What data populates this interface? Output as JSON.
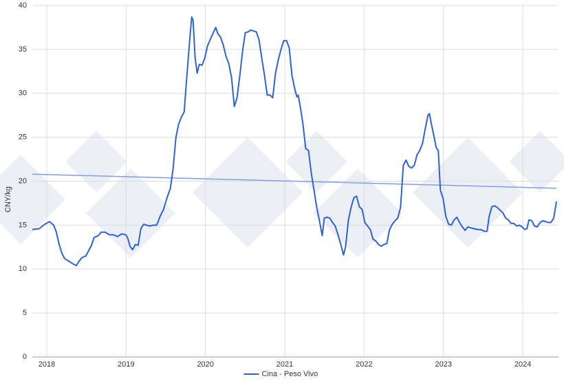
{
  "chart_data": {
    "type": "line",
    "y_label": "CNY/kg",
    "xlim": [
      2017.818,
      2024.45
    ],
    "xticks": [
      2018,
      2019,
      2020,
      2021,
      2022,
      2023,
      2024
    ],
    "ylim": [
      0,
      40
    ],
    "yticks": [
      0,
      5,
      10,
      15,
      20,
      25,
      30,
      35,
      40
    ],
    "grid": true,
    "legend": "bottom",
    "x": [
      2017.818,
      2017.905,
      2017.974,
      2018.035,
      2018.087,
      2018.121,
      2018.156,
      2018.19,
      2018.225,
      2018.277,
      2018.329,
      2018.372,
      2018.407,
      2018.442,
      2018.494,
      2018.528,
      2018.563,
      2018.597,
      2018.649,
      2018.684,
      2018.736,
      2018.788,
      2018.84,
      2018.892,
      2018.944,
      2018.996,
      2019.022,
      2019.048,
      2019.082,
      2019.117,
      2019.152,
      2019.186,
      2019.221,
      2019.255,
      2019.299,
      2019.342,
      2019.385,
      2019.429,
      2019.472,
      2019.515,
      2019.558,
      2019.593,
      2019.628,
      2019.662,
      2019.697,
      2019.732,
      2019.766,
      2019.801,
      2019.827,
      2019.844,
      2019.87,
      2019.896,
      2019.922,
      2019.957,
      2019.991,
      2020.026,
      2020.069,
      2020.104,
      2020.13,
      2020.156,
      2020.19,
      2020.225,
      2020.26,
      2020.294,
      2020.329,
      2020.364,
      2020.398,
      2020.433,
      2020.468,
      2020.502,
      2020.537,
      2020.571,
      2020.606,
      2020.641,
      2020.675,
      2020.71,
      2020.745,
      2020.779,
      2020.814,
      2020.848,
      2020.883,
      2020.918,
      2020.952,
      2020.987,
      2021.022,
      2021.056,
      2021.091,
      2021.126,
      2021.152,
      2021.169,
      2021.195,
      2021.229,
      2021.264,
      2021.299,
      2021.333,
      2021.368,
      2021.403,
      2021.437,
      2021.472,
      2021.498,
      2021.532,
      2021.567,
      2021.602,
      2021.636,
      2021.671,
      2021.706,
      2021.74,
      2021.766,
      2021.801,
      2021.835,
      2021.87,
      2021.905,
      2021.939,
      2021.974,
      2022.009,
      2022.043,
      2022.078,
      2022.113,
      2022.147,
      2022.182,
      2022.216,
      2022.251,
      2022.286,
      2022.32,
      2022.355,
      2022.39,
      2022.424,
      2022.459,
      2022.494,
      2022.528,
      2022.563,
      2022.597,
      2022.632,
      2022.667,
      2022.701,
      2022.736,
      2022.771,
      2022.805,
      2022.823,
      2022.848,
      2022.883,
      2022.909,
      2022.935,
      2022.961,
      2022.996,
      2023.03,
      2023.065,
      2023.1,
      2023.134,
      2023.169,
      2023.203,
      2023.238,
      2023.273,
      2023.307,
      2023.342,
      2023.385,
      2023.429,
      2023.472,
      2023.515,
      2023.55,
      2023.576,
      2023.61,
      2023.645,
      2023.68,
      2023.714,
      2023.749,
      2023.784,
      2023.818,
      2023.853,
      2023.887,
      2023.922,
      2023.957,
      2023.991,
      2024.026,
      2024.052,
      2024.078,
      2024.113,
      2024.147,
      2024.182,
      2024.217,
      2024.251,
      2024.286,
      2024.32,
      2024.355,
      2024.39,
      2024.424
    ],
    "series": [
      {
        "name": "Cina - Peso Vivo",
        "color": "#2d62d3",
        "values": [
          14.5,
          14.6,
          15.1,
          15.4,
          15.0,
          14.2,
          12.8,
          11.8,
          11.2,
          10.9,
          10.6,
          10.4,
          10.9,
          11.3,
          11.5,
          12.1,
          12.7,
          13.6,
          13.8,
          14.2,
          14.2,
          13.9,
          13.9,
          13.7,
          14.0,
          13.9,
          13.5,
          12.6,
          12.2,
          12.8,
          12.7,
          14.6,
          15.1,
          15.0,
          14.9,
          15.0,
          15.0,
          16.0,
          16.8,
          18.1,
          19.2,
          21.5,
          25.0,
          26.5,
          27.3,
          27.9,
          32.0,
          36.0,
          38.7,
          38.3,
          34.0,
          32.3,
          33.3,
          33.2,
          34.0,
          35.4,
          36.3,
          37.0,
          37.5,
          36.8,
          36.4,
          35.5,
          34.2,
          33.4,
          31.8,
          28.5,
          29.5,
          32.0,
          34.8,
          36.9,
          37.0,
          37.2,
          37.1,
          37.0,
          36.1,
          34.0,
          32.0,
          29.8,
          29.8,
          29.5,
          32.3,
          33.8,
          35.0,
          36.0,
          36.0,
          35.2,
          32.0,
          30.5,
          29.6,
          29.8,
          28.5,
          26.5,
          23.7,
          23.5,
          21.0,
          19.0,
          17.0,
          15.5,
          13.8,
          15.8,
          15.9,
          15.8,
          15.3,
          14.9,
          13.9,
          12.8,
          11.6,
          12.5,
          15.5,
          17.0,
          18.1,
          18.3,
          17.1,
          16.8,
          15.3,
          14.9,
          14.5,
          13.4,
          13.2,
          12.8,
          12.6,
          12.8,
          12.9,
          14.5,
          15.1,
          15.5,
          15.8,
          17.0,
          21.8,
          22.4,
          21.7,
          21.5,
          21.8,
          23.0,
          23.5,
          24.3,
          26.0,
          27.5,
          27.7,
          26.5,
          25.0,
          23.8,
          23.5,
          19.0,
          18.0,
          16.0,
          15.1,
          15.0,
          15.6,
          15.9,
          15.3,
          14.8,
          14.4,
          14.8,
          14.7,
          14.6,
          14.5,
          14.5,
          14.3,
          14.3,
          16.0,
          17.1,
          17.2,
          17.0,
          16.7,
          16.4,
          15.8,
          15.6,
          15.2,
          15.2,
          14.9,
          15.0,
          14.8,
          14.5,
          14.6,
          15.6,
          15.5,
          14.9,
          14.8,
          15.3,
          15.5,
          15.4,
          15.3,
          15.3,
          15.8,
          17.7
        ]
      }
    ],
    "trendline": {
      "color": "#7f9ee6",
      "x": [
        2017.818,
        2024.424
      ],
      "values": [
        20.8,
        19.2
      ]
    }
  }
}
